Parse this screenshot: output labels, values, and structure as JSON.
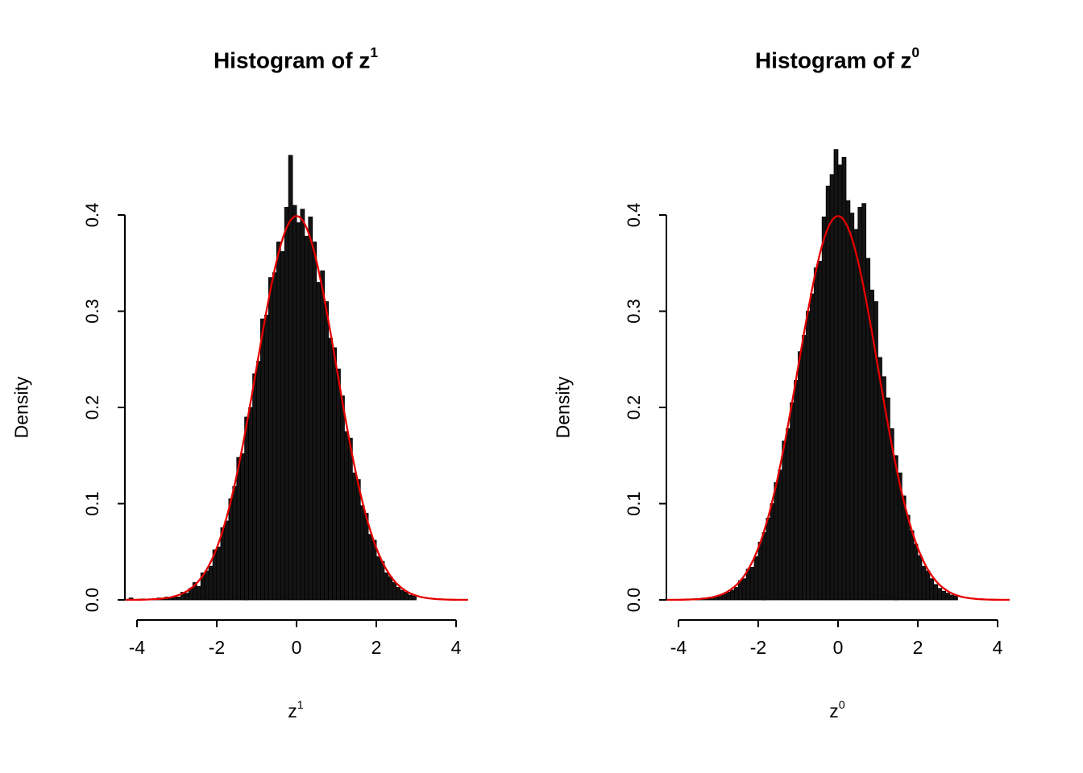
{
  "page": {
    "background": "#ffffff"
  },
  "chart_data": [
    {
      "type": "histogram",
      "title": "Histogram of z",
      "title_sup": "1",
      "xlabel": "z",
      "xlabel_sup": "1",
      "ylabel": "Density",
      "x_ticks": [
        -4,
        -2,
        0,
        2,
        4
      ],
      "y_ticks": [
        0,
        0.1,
        0.2,
        0.3,
        0.4
      ],
      "y_tick_labels": [
        "0.0",
        "0.1",
        "0.2",
        "0.3",
        "0.4"
      ],
      "xlim": [
        -4.3,
        4.3
      ],
      "ylim": [
        0,
        0.47
      ],
      "bin_start": -4.2,
      "bin_width": 0.1,
      "bar_fill": "#141414",
      "bar_stroke": "#000000",
      "curve": {
        "type": "normal-density",
        "mean": 0,
        "sd": 1,
        "color": "#e60000"
      },
      "densities": [
        0.002,
        0,
        0,
        0.001,
        0,
        0.001,
        0.001,
        0.002,
        0.001,
        0.003,
        0.002,
        0.004,
        0.003,
        0.008,
        0.007,
        0.012,
        0.018,
        0.014,
        0.028,
        0.03,
        0.035,
        0.052,
        0.055,
        0.075,
        0.082,
        0.105,
        0.118,
        0.148,
        0.152,
        0.19,
        0.2,
        0.235,
        0.248,
        0.292,
        0.296,
        0.335,
        0.34,
        0.372,
        0.362,
        0.408,
        0.462,
        0.41,
        0.392,
        0.406,
        0.378,
        0.398,
        0.372,
        0.33,
        0.342,
        0.31,
        0.272,
        0.262,
        0.24,
        0.212,
        0.175,
        0.168,
        0.132,
        0.125,
        0.098,
        0.09,
        0.068,
        0.062,
        0.045,
        0.04,
        0.028,
        0.024,
        0.018,
        0.013,
        0.01,
        0.008,
        0.005,
        0.004
      ]
    },
    {
      "type": "histogram",
      "title": "Histogram of z",
      "title_sup": "0",
      "xlabel": "z",
      "xlabel_sup": "0",
      "ylabel": "Density",
      "x_ticks": [
        -4,
        -2,
        0,
        2,
        4
      ],
      "y_ticks": [
        0,
        0.1,
        0.2,
        0.3,
        0.4
      ],
      "y_tick_labels": [
        "0.0",
        "0.1",
        "0.2",
        "0.3",
        "0.4"
      ],
      "xlim": [
        -4.3,
        4.3
      ],
      "ylim": [
        0,
        0.47
      ],
      "bin_start": -4.2,
      "bin_width": 0.1,
      "bar_fill": "#141414",
      "bar_stroke": "#000000",
      "curve": {
        "type": "normal-density",
        "mean": 0,
        "sd": 1,
        "color": "#e60000"
      },
      "densities": [
        0,
        0,
        0,
        0,
        0.001,
        0,
        0.001,
        0.001,
        0.002,
        0.002,
        0.003,
        0.003,
        0.005,
        0.006,
        0.008,
        0.01,
        0.013,
        0.02,
        0.022,
        0.032,
        0.034,
        0.045,
        0.06,
        0.07,
        0.085,
        0.1,
        0.122,
        0.135,
        0.165,
        0.178,
        0.205,
        0.228,
        0.258,
        0.275,
        0.3,
        0.318,
        0.345,
        0.352,
        0.398,
        0.43,
        0.442,
        0.468,
        0.452,
        0.46,
        0.415,
        0.402,
        0.385,
        0.408,
        0.412,
        0.355,
        0.322,
        0.31,
        0.252,
        0.232,
        0.21,
        0.178,
        0.15,
        0.132,
        0.108,
        0.088,
        0.072,
        0.058,
        0.046,
        0.035,
        0.03,
        0.022,
        0.016,
        0.012,
        0.009,
        0.007,
        0.005,
        0.004
      ]
    }
  ]
}
